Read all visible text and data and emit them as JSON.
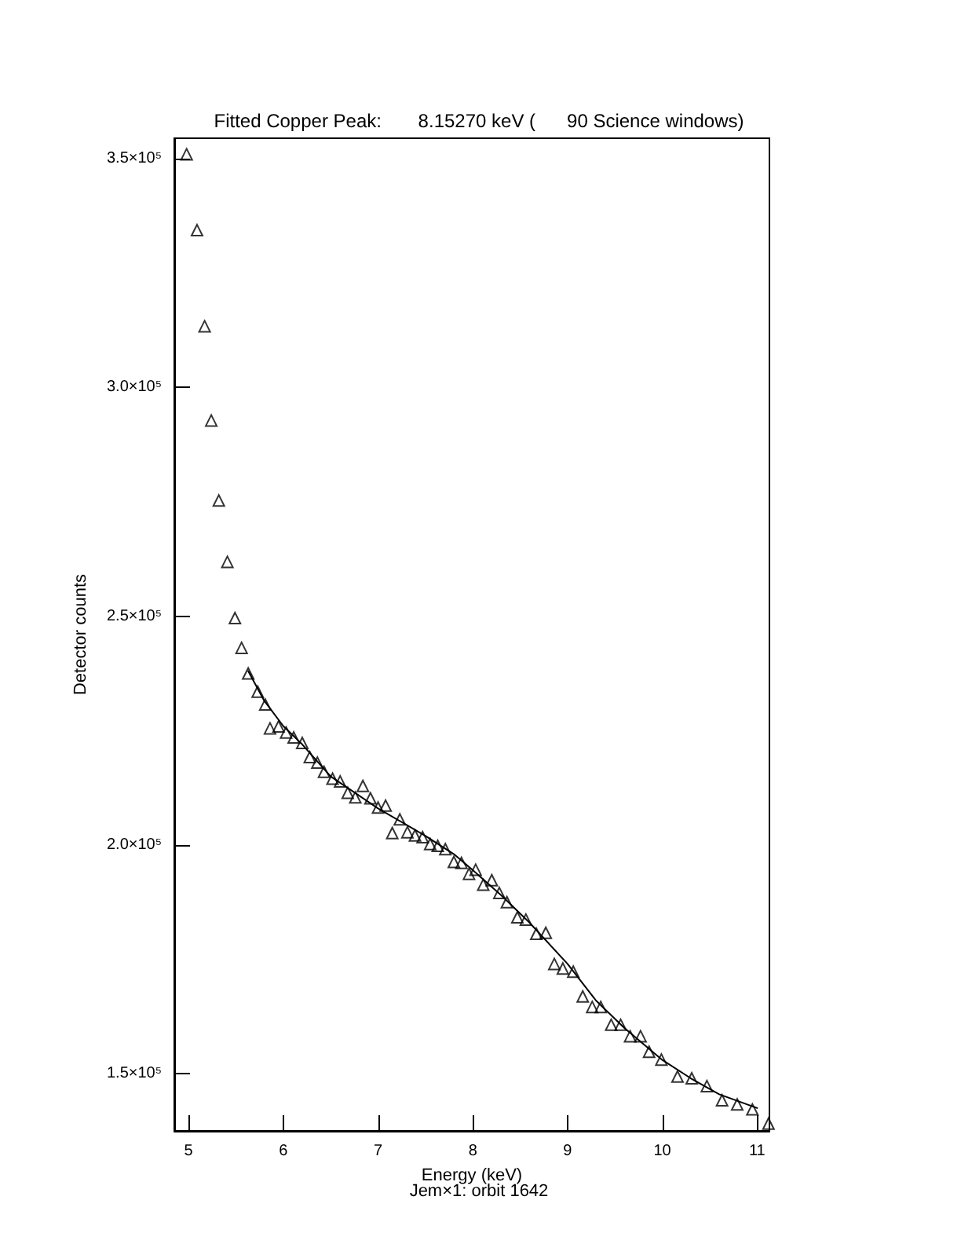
{
  "chart_data": {
    "type": "scatter",
    "title": "Fitted Copper Peak:       8.15270 keV (      90 Science windows)",
    "xlabel": "Energy (keV)",
    "ylabel": "Detector counts",
    "annotations": [
      "Jem×1: orbit 1642"
    ],
    "xlim": [
      4.85,
      11.13
    ],
    "xticks": [
      5,
      6,
      7,
      8,
      9,
      10,
      11
    ],
    "ylim": [
      137500,
      354500
    ],
    "yticks": [
      {
        "value": 150000,
        "label": "1.5×10⁵"
      },
      {
        "value": 200000,
        "label": "2.0×10⁵"
      },
      {
        "value": 250000,
        "label": "2.5×10⁵"
      },
      {
        "value": 300000,
        "label": "3.0×10⁵"
      },
      {
        "value": 350000,
        "label": "3.5×10⁵"
      }
    ],
    "grid": false,
    "series": [
      {
        "marker": "triangle",
        "color": "#000000",
        "x": [
          4.98,
          5.09,
          5.17,
          5.24,
          5.32,
          5.41,
          5.49,
          5.56,
          5.63,
          5.73,
          5.81,
          5.86,
          5.95,
          6.03,
          6.11,
          6.2,
          6.28,
          6.36,
          6.43,
          6.52,
          6.6,
          6.68,
          6.76,
          6.84,
          6.92,
          7.0,
          7.08,
          7.15,
          7.23,
          7.31,
          7.39,
          7.47,
          7.55,
          7.63,
          7.71,
          7.8,
          7.88,
          7.96,
          8.03,
          8.11,
          8.2,
          8.28,
          8.36,
          8.47,
          8.56,
          8.67,
          8.77,
          8.86,
          8.95,
          9.06,
          9.16,
          9.26,
          9.35,
          9.46,
          9.56,
          9.66,
          9.77,
          9.86,
          9.99,
          10.16,
          10.31,
          10.47,
          10.63,
          10.79,
          10.95,
          11.12
        ],
        "values": [
          351000,
          334400,
          313400,
          292800,
          275300,
          261900,
          249600,
          243100,
          237500,
          233500,
          230700,
          225500,
          225900,
          224600,
          223500,
          222300,
          219200,
          218000,
          216000,
          214500,
          213900,
          211400,
          210400,
          212900,
          210200,
          208200,
          208600,
          202600,
          205600,
          202800,
          202100,
          201700,
          200200,
          199800,
          199100,
          196300,
          196100,
          193700,
          194600,
          191300,
          192300,
          189500,
          187500,
          184200,
          183700,
          180600,
          180800,
          174000,
          173000,
          172300,
          166900,
          164600,
          164600,
          160700,
          160700,
          158200,
          158200,
          154800,
          153100,
          149400,
          149000,
          147300,
          144200,
          143300,
          142200,
          139100
        ]
      },
      {
        "type": "line",
        "marker": "none",
        "line_style": "solid",
        "color": "#000000",
        "x": [
          5.63,
          5.8,
          6.0,
          6.2,
          6.5,
          7.0,
          7.5,
          7.8,
          8.0,
          8.3,
          8.6,
          9.0,
          9.3,
          9.6,
          10.0,
          10.3,
          10.6,
          11.0
        ],
        "values": [
          238000,
          231500,
          226000,
          222000,
          215000,
          208000,
          202000,
          198000,
          194500,
          189000,
          183000,
          174000,
          166000,
          160000,
          153000,
          149000,
          145500,
          142500
        ]
      }
    ]
  }
}
